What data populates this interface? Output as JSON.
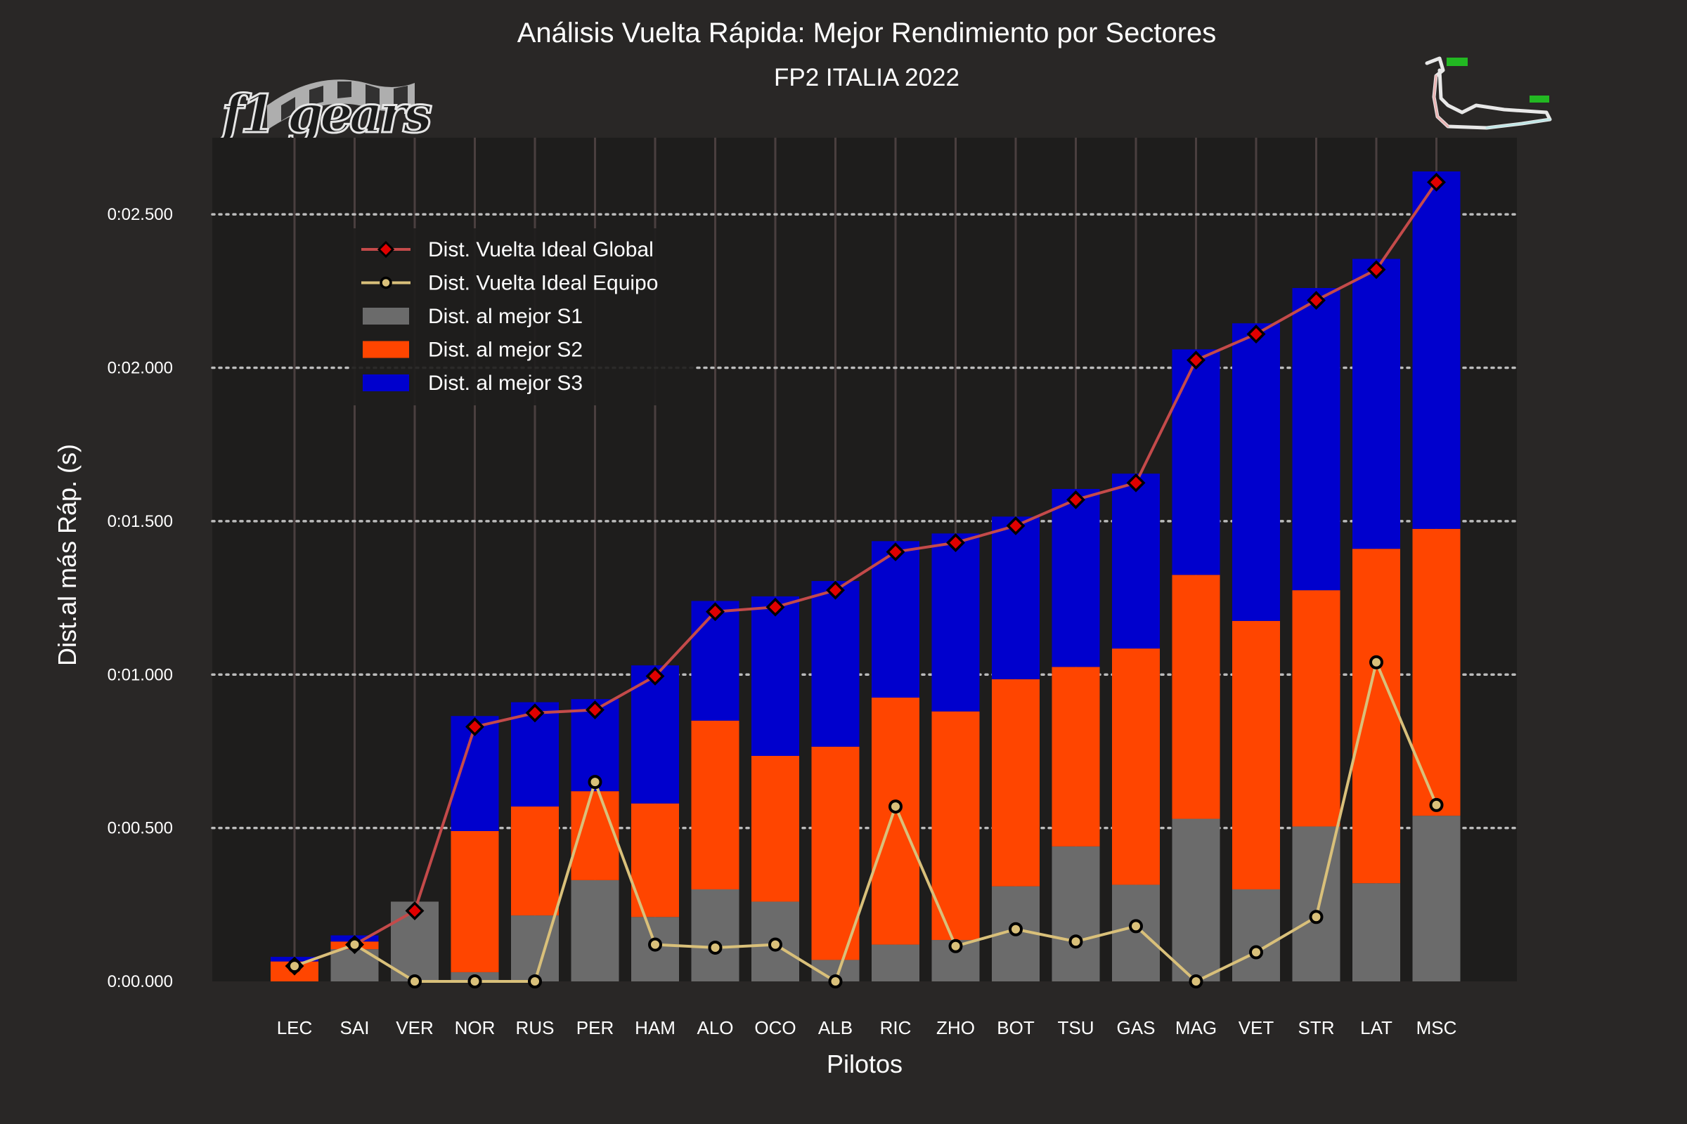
{
  "chart_data": {
    "type": "bar",
    "stacked": true,
    "title": "Análisis Vuelta Rápida: Mejor Rendimiento por Sectores",
    "subtitle": "FP2 ITALIA 2022",
    "xlabel": "Pilotos",
    "ylabel": "Dist.al más Ráp. (s)",
    "ylim": [
      0,
      2.75
    ],
    "yticks": [
      0,
      0.5,
      1.0,
      1.5,
      2.0,
      2.5
    ],
    "ytick_labels": [
      "0:00.000",
      "0:00.500",
      "0:01.000",
      "0:01.500",
      "0:02.000",
      "0:02.500"
    ],
    "categories": [
      "LEC",
      "SAI",
      "VER",
      "NOR",
      "RUS",
      "PER",
      "HAM",
      "ALO",
      "OCO",
      "ALB",
      "RIC",
      "ZHO",
      "BOT",
      "TSU",
      "GAS",
      "MAG",
      "VET",
      "STR",
      "LAT",
      "MSC"
    ],
    "series": [
      {
        "name": "Dist. al mejor S1",
        "kind": "bar",
        "color": "#6b6b6b",
        "values": [
          0.0,
          0.105,
          0.26,
          0.03,
          0.215,
          0.33,
          0.21,
          0.3,
          0.26,
          0.07,
          0.12,
          0.135,
          0.31,
          0.44,
          0.315,
          0.53,
          0.3,
          0.505,
          0.32,
          0.54
        ]
      },
      {
        "name": "Dist. al mejor S2",
        "kind": "bar",
        "color": "#ff4500",
        "values": [
          0.065,
          0.025,
          0.0,
          0.46,
          0.355,
          0.29,
          0.37,
          0.55,
          0.475,
          0.695,
          0.805,
          0.745,
          0.675,
          0.585,
          0.77,
          0.795,
          0.875,
          0.77,
          1.09,
          0.935
        ]
      },
      {
        "name": "Dist. al mejor S3",
        "kind": "bar",
        "color": "#0000cd",
        "values": [
          0.015,
          0.02,
          0.0,
          0.375,
          0.34,
          0.3,
          0.45,
          0.39,
          0.52,
          0.54,
          0.51,
          0.58,
          0.53,
          0.58,
          0.57,
          0.735,
          0.97,
          0.985,
          0.945,
          1.165
        ]
      },
      {
        "name": "Dist. Vuelta Ideal Global",
        "kind": "line",
        "color": "#c44a4a",
        "marker_color": "#e00000",
        "values": [
          0.05,
          0.12,
          0.23,
          0.83,
          0.875,
          0.885,
          0.995,
          1.205,
          1.22,
          1.275,
          1.4,
          1.43,
          1.485,
          1.57,
          1.625,
          2.025,
          2.11,
          2.22,
          2.32,
          2.605
        ]
      },
      {
        "name": "Dist. Vuelta Ideal Equipo",
        "kind": "line",
        "color": "#d9c07a",
        "marker_color": "#d9c07a",
        "values": [
          0.05,
          0.12,
          0.0,
          0.0,
          0.0,
          0.65,
          0.12,
          0.11,
          0.12,
          0.0,
          0.57,
          0.115,
          0.17,
          0.13,
          0.18,
          0.0,
          0.095,
          0.21,
          1.04,
          0.575
        ]
      }
    ],
    "legend": {
      "position": "upper-left",
      "items": [
        "Dist. Vuelta Ideal Global",
        "Dist. Vuelta Ideal Equipo",
        "Dist. al mejor S1",
        "Dist. al mejor S2",
        "Dist. al mejor S3"
      ]
    },
    "grid": true
  },
  "logo": {
    "text": "f1 gears"
  },
  "colors": {
    "background": "#292726",
    "plot_background": "#1e1d1c",
    "grid_v": "#4a3f3f",
    "grid_h": "#bcbcbc"
  }
}
